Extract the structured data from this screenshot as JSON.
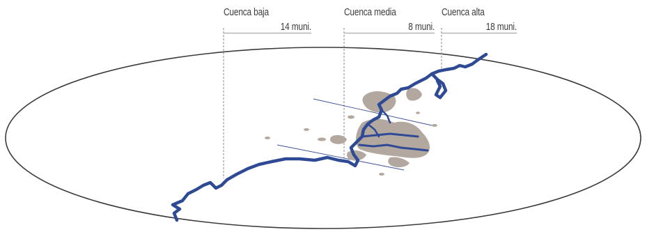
{
  "basins": [
    {
      "name": "Cuenca baja",
      "count": "14 muni."
    },
    {
      "name": "Cuenca media",
      "count": "8 muni."
    },
    {
      "name": "Cuenca alta",
      "count": "18 muni."
    }
  ],
  "colors": {
    "river": "#2e4a95",
    "urban": "#b3a89f",
    "ellipse": "#3a3a3a",
    "rule": "#9a9a9a",
    "text": "#3c3c3c"
  }
}
